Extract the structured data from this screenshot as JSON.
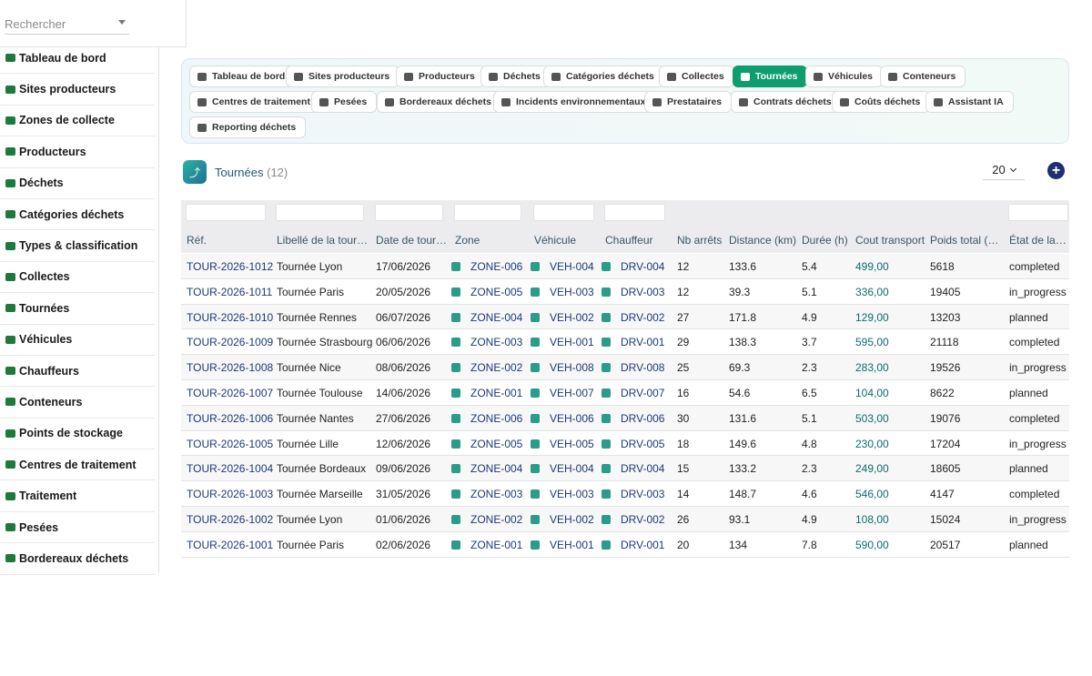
{
  "search": {
    "placeholder": "Rechercher"
  },
  "sidebar": {
    "items": [
      {
        "label": "Tableau de bord",
        "icon": "gauge-icon"
      },
      {
        "label": "Sites producteurs",
        "icon": "factory-icon"
      },
      {
        "label": "Zones de collecte",
        "icon": "map-zone-icon"
      },
      {
        "label": "Producteurs",
        "icon": "building-icon"
      },
      {
        "label": "Déchets",
        "icon": "trash-icon"
      },
      {
        "label": "Catégories déchets",
        "icon": "layers-icon"
      },
      {
        "label": "Types & classification",
        "icon": "tags-icon"
      },
      {
        "label": "Collectes",
        "icon": "truck-loading-icon"
      },
      {
        "label": "Tournées",
        "icon": "route-icon"
      },
      {
        "label": "Véhicules",
        "icon": "truck-icon"
      },
      {
        "label": "Chauffeurs",
        "icon": "id-badge-icon"
      },
      {
        "label": "Conteneurs",
        "icon": "container-icon"
      },
      {
        "label": "Points de stockage",
        "icon": "warehouse-icon"
      },
      {
        "label": "Centres de traitement",
        "icon": "recycle-icon"
      },
      {
        "label": "Traitement",
        "icon": "cogs-icon"
      },
      {
        "label": "Pesées",
        "icon": "scale-icon"
      },
      {
        "label": "Bordereaux déchets",
        "icon": "file-signature-icon"
      }
    ]
  },
  "tabs": [
    {
      "label": "Tableau de bord",
      "icon": "gauge-icon",
      "active": false
    },
    {
      "label": "Sites producteurs",
      "icon": "factory-icon",
      "active": false
    },
    {
      "label": "Producteurs",
      "icon": "building-icon",
      "active": false
    },
    {
      "label": "Déchets",
      "icon": "trash-icon",
      "active": false
    },
    {
      "label": "Catégories déchets",
      "icon": "layers-icon",
      "active": false
    },
    {
      "label": "Collectes",
      "icon": "truck-loading-icon",
      "active": false
    },
    {
      "label": "Tournées",
      "icon": "route-icon",
      "active": true
    },
    {
      "label": "Véhicules",
      "icon": "truck-icon",
      "active": false
    },
    {
      "label": "Conteneurs",
      "icon": "container-icon",
      "active": false
    },
    {
      "label": "Centres de traitement",
      "icon": "recycle-icon",
      "active": false
    },
    {
      "label": "Pesées",
      "icon": "scale-icon",
      "active": false
    },
    {
      "label": "Bordereaux déchets",
      "icon": "file-signature-icon",
      "active": false
    },
    {
      "label": "Incidents environnementaux",
      "icon": "warning-icon",
      "active": false
    },
    {
      "label": "Prestataires",
      "icon": "handshake-icon",
      "active": false
    },
    {
      "label": "Contrats déchets",
      "icon": "contract-icon",
      "active": false
    },
    {
      "label": "Coûts déchets",
      "icon": "coins-icon",
      "active": false
    },
    {
      "label": "Assistant IA",
      "icon": "robot-icon",
      "active": false
    },
    {
      "label": "Reporting déchets",
      "icon": "pie-chart-icon",
      "active": false
    }
  ],
  "page": {
    "title": "Tournées",
    "count": "(12)",
    "page_size": "20",
    "add_label": "+"
  },
  "table": {
    "headers": [
      "Réf.",
      "Libellé de la tournée",
      "Date de tournée",
      "Zone",
      "Véhicule",
      "Chauffeur",
      "Nb arrêts",
      "Distance (km)",
      "Durée (h)",
      "Cout transport",
      "Poids total (kg)",
      "État de la tournée"
    ],
    "header_display": [
      "Réf.",
      "Libellé de la tour…",
      "Date de tour…",
      "Zone",
      "Véhicule",
      "Chauffeur",
      "Nb arrêts",
      "Distance (km)",
      "Durée (h)",
      "Cout transport",
      "Poids total (…",
      "État de la to…"
    ],
    "rows": [
      {
        "ref": "TOUR-2026-1012",
        "label": "Tournée Lyon",
        "date": "17/06/2026",
        "zone": "ZONE-006",
        "vehicle": "VEH-004",
        "driver": "DRV-004",
        "stops": "12",
        "distance": "133.6",
        "duration": "5.4",
        "cost": "499,00",
        "weight": "5618",
        "state": "completed"
      },
      {
        "ref": "TOUR-2026-1011",
        "label": "Tournée Paris",
        "date": "20/05/2026",
        "zone": "ZONE-005",
        "vehicle": "VEH-003",
        "driver": "DRV-003",
        "stops": "12",
        "distance": "39.3",
        "duration": "5.1",
        "cost": "336,00",
        "weight": "19405",
        "state": "in_progress"
      },
      {
        "ref": "TOUR-2026-1010",
        "label": "Tournée Rennes",
        "date": "06/07/2026",
        "zone": "ZONE-004",
        "vehicle": "VEH-002",
        "driver": "DRV-002",
        "stops": "27",
        "distance": "171.8",
        "duration": "4.9",
        "cost": "129,00",
        "weight": "13203",
        "state": "planned"
      },
      {
        "ref": "TOUR-2026-1009",
        "label": "Tournée Strasbourg",
        "date": "06/06/2026",
        "zone": "ZONE-003",
        "vehicle": "VEH-001",
        "driver": "DRV-001",
        "stops": "29",
        "distance": "138.3",
        "duration": "3.7",
        "cost": "595,00",
        "weight": "21118",
        "state": "completed"
      },
      {
        "ref": "TOUR-2026-1008",
        "label": "Tournée Nice",
        "date": "08/06/2026",
        "zone": "ZONE-002",
        "vehicle": "VEH-008",
        "driver": "DRV-008",
        "stops": "25",
        "distance": "69.3",
        "duration": "2.3",
        "cost": "283,00",
        "weight": "19526",
        "state": "in_progress"
      },
      {
        "ref": "TOUR-2026-1007",
        "label": "Tournée Toulouse",
        "date": "14/06/2026",
        "zone": "ZONE-001",
        "vehicle": "VEH-007",
        "driver": "DRV-007",
        "stops": "16",
        "distance": "54.6",
        "duration": "6.5",
        "cost": "104,00",
        "weight": "8622",
        "state": "planned"
      },
      {
        "ref": "TOUR-2026-1006",
        "label": "Tournée Nantes",
        "date": "27/06/2026",
        "zone": "ZONE-006",
        "vehicle": "VEH-006",
        "driver": "DRV-006",
        "stops": "30",
        "distance": "131.6",
        "duration": "5.1",
        "cost": "503,00",
        "weight": "19076",
        "state": "completed"
      },
      {
        "ref": "TOUR-2026-1005",
        "label": "Tournée Lille",
        "date": "12/06/2026",
        "zone": "ZONE-005",
        "vehicle": "VEH-005",
        "driver": "DRV-005",
        "stops": "18",
        "distance": "149.6",
        "duration": "4.8",
        "cost": "230,00",
        "weight": "17204",
        "state": "in_progress"
      },
      {
        "ref": "TOUR-2026-1004",
        "label": "Tournée Bordeaux",
        "date": "09/06/2026",
        "zone": "ZONE-004",
        "vehicle": "VEH-004",
        "driver": "DRV-004",
        "stops": "15",
        "distance": "133.2",
        "duration": "2.3",
        "cost": "249,00",
        "weight": "18605",
        "state": "planned"
      },
      {
        "ref": "TOUR-2026-1003",
        "label": "Tournée Marseille",
        "date": "31/05/2026",
        "zone": "ZONE-003",
        "vehicle": "VEH-003",
        "driver": "DRV-003",
        "stops": "14",
        "distance": "148.7",
        "duration": "4.6",
        "cost": "546,00",
        "weight": "4147",
        "state": "completed"
      },
      {
        "ref": "TOUR-2026-1002",
        "label": "Tournée Lyon",
        "date": "01/06/2026",
        "zone": "ZONE-002",
        "vehicle": "VEH-002",
        "driver": "DRV-002",
        "stops": "26",
        "distance": "93.1",
        "duration": "4.9",
        "cost": "108,00",
        "weight": "15024",
        "state": "in_progress"
      },
      {
        "ref": "TOUR-2026-1001",
        "label": "Tournée Paris",
        "date": "02/06/2026",
        "zone": "ZONE-001",
        "vehicle": "VEH-001",
        "driver": "DRV-001",
        "stops": "20",
        "distance": "134",
        "duration": "7.8",
        "cost": "590,00",
        "weight": "20517",
        "state": "planned"
      }
    ]
  },
  "colors": {
    "accent": "#0e9d6e",
    "link": "#1a3a7a",
    "cost": "#0a6e6a",
    "add": "#1f2f6e"
  }
}
